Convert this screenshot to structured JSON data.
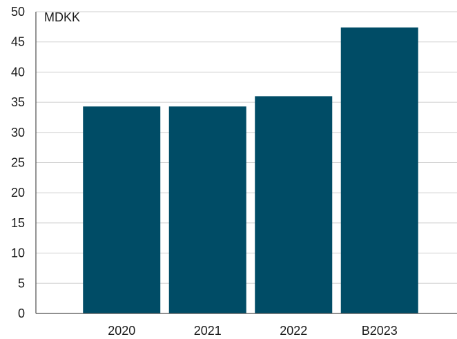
{
  "chart_data": {
    "type": "bar",
    "title": "",
    "xlabel": "",
    "ylabel": "MDKK",
    "categories": [
      "2020",
      "2021",
      "2022",
      "B2023"
    ],
    "values": [
      34.3,
      34.3,
      36.0,
      47.4
    ],
    "ylim": [
      0,
      50
    ],
    "yticks": [
      "0",
      "5",
      "10",
      "15",
      "20",
      "25",
      "30",
      "35",
      "40",
      "45",
      "50"
    ],
    "grid": true,
    "legend": "none",
    "bar_color": "#004c66"
  }
}
